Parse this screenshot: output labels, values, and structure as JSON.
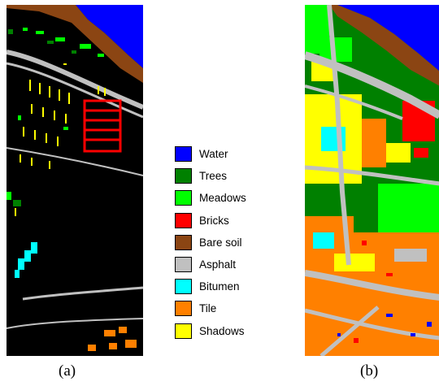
{
  "captions": {
    "a": "(a)",
    "b": "(b)"
  },
  "legend": [
    {
      "label": "Water",
      "color": "#0000ff"
    },
    {
      "label": "Trees",
      "color": "#008000"
    },
    {
      "label": "Meadows",
      "color": "#00ff00"
    },
    {
      "label": "Bricks",
      "color": "#ff0000"
    },
    {
      "label": "Bare soil",
      "color": "#8b4513"
    },
    {
      "label": "Asphalt",
      "color": "#c0c0c0"
    },
    {
      "label": "Bitumen",
      "color": "#00ffff"
    },
    {
      "label": "Tile",
      "color": "#ff8000"
    },
    {
      "label": "Shadows",
      "color": "#ffff00"
    }
  ]
}
